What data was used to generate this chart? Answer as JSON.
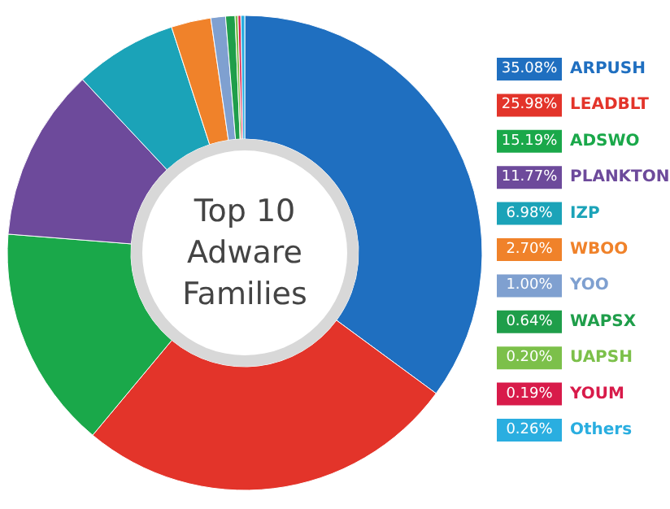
{
  "chart_data": {
    "type": "donut",
    "title": "Top 10\nAdware\nFamilies",
    "categories": [
      "ARPUSH",
      "LEADBLT",
      "ADSWO",
      "PLANKTON",
      "IZP",
      "WBOO",
      "YOO",
      "WAPSX",
      "UAPSH",
      "YOUM",
      "Others"
    ],
    "values": [
      35.08,
      25.98,
      15.19,
      11.77,
      6.98,
      2.7,
      1.0,
      0.64,
      0.2,
      0.19,
      0.26
    ],
    "value_labels": [
      "35.08%",
      "25.98%",
      "15.19%",
      "11.77%",
      "6.98%",
      "2.70%",
      "1.00%",
      "0.64%",
      "0.20%",
      "0.19%",
      "0.26%"
    ],
    "colors": [
      "#1f6fc0",
      "#e3342a",
      "#1aa84a",
      "#6d4a9b",
      "#1ba3b8",
      "#f0822a",
      "#7fa0d0",
      "#1f9e4a",
      "#7cc04a",
      "#d81b4a",
      "#2aaee0"
    ],
    "legend": "right"
  }
}
